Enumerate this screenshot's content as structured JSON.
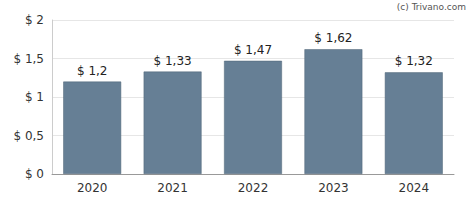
{
  "chart_data": {
    "type": "bar",
    "categories": [
      "2020",
      "2021",
      "2022",
      "2023",
      "2024"
    ],
    "values": [
      1.2,
      1.33,
      1.47,
      1.62,
      1.32
    ],
    "value_labels": [
      "$ 1,2",
      "$ 1,33",
      "$ 1,47",
      "$ 1,62",
      "$ 1,32"
    ],
    "color": "#667f95",
    "ylim": [
      0,
      2
    ],
    "yticks": [
      {
        "value": 0,
        "label": "$ 0"
      },
      {
        "value": 0.5,
        "label": "$ 0,5"
      },
      {
        "value": 1,
        "label": "$ 1"
      },
      {
        "value": 1.5,
        "label": "$ 1,5"
      },
      {
        "value": 2,
        "label": "$ 2"
      }
    ],
    "grid": true,
    "data_labels": true,
    "annotations": [
      "(c) Trivano.com"
    ]
  }
}
